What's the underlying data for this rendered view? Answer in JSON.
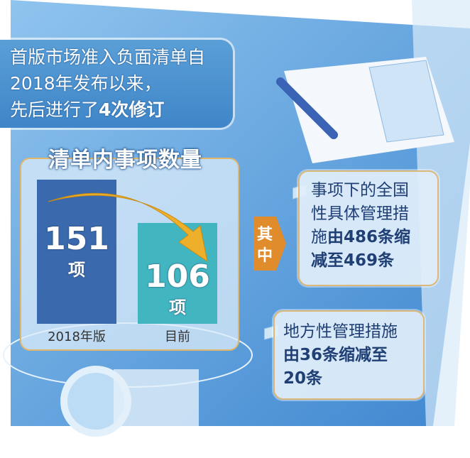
{
  "header": {
    "line1": "首版市场准入负面清单自",
    "line2": "2018年发布以来，",
    "line3_prefix": "先后进行了",
    "line3_bold": "4次修订"
  },
  "chart_data": {
    "type": "bar",
    "title": "清单内事项数量",
    "categories": [
      "2018年版",
      "目前"
    ],
    "values": [
      151,
      106
    ],
    "unit": "项",
    "colors": [
      "#3a6aad",
      "#41b5c0"
    ]
  },
  "tag": {
    "label_1": "其",
    "label_2": "中",
    "color": "#e08c2c"
  },
  "notes": [
    {
      "text_a": "事项下的全国",
      "text_b": "性具体管理措",
      "text_c": "施",
      "bold_c": "由486条缩",
      "bold_d": "减至469条"
    },
    {
      "text_a": "地方性管理措施",
      "bold_b": "由36条缩减至",
      "bold_c": "20条"
    }
  ],
  "colors": {
    "panel": "#4a93d6",
    "accent": "#e8b03a"
  }
}
